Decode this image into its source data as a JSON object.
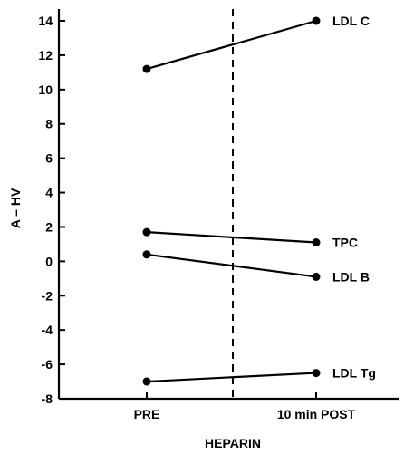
{
  "chart_data": {
    "type": "line",
    "title": "",
    "xlabel": "HEPARIN",
    "ylabel": "A – HV",
    "categories": [
      "PRE",
      "10 min POST"
    ],
    "ylim": [
      -8,
      14
    ],
    "yticks": [
      "14",
      "12",
      "10",
      "8",
      "6",
      "4",
      "2",
      "0",
      "-2",
      "-4",
      "-6",
      "-8"
    ],
    "divider": "dashed vertical line between PRE and 10 min POST",
    "grid": false,
    "series": [
      {
        "name": "LDL C",
        "values": [
          11.2,
          14.0
        ]
      },
      {
        "name": "TPC",
        "values": [
          1.7,
          1.1
        ]
      },
      {
        "name": "LDL B",
        "values": [
          0.4,
          -0.9
        ]
      },
      {
        "name": "LDL Tg",
        "values": [
          -7.0,
          -6.5
        ]
      }
    ]
  },
  "colors": {
    "ink": "#000000",
    "background": "#ffffff"
  }
}
